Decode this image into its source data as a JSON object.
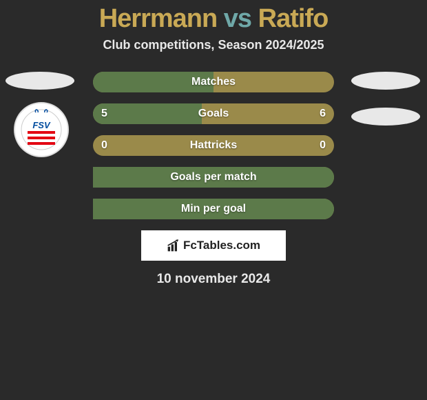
{
  "title": {
    "player1": "Herrmann",
    "vs": "vs",
    "player2": "Ratifo"
  },
  "subtitle": "Club competitions, Season 2024/2025",
  "date": "10 november 2024",
  "colors": {
    "bg": "#2a2a2a",
    "title_accent": "#c9a955",
    "title_vs": "#6fa8a8",
    "bar_base": "#9a8a4a",
    "bar_fill": "#5c7a4a",
    "text": "#e8e8e8"
  },
  "logo": {
    "bg": "#ffffff",
    "stripes": [
      "#e30613",
      "#ffffff",
      "#e30613",
      "#ffffff",
      "#e30613"
    ],
    "text": "FSV",
    "text_color": "#004b9e"
  },
  "bars": [
    {
      "label": "Matches",
      "left": null,
      "right": null,
      "left_pct": 50,
      "right_pct": 0
    },
    {
      "label": "Goals",
      "left": "5",
      "right": "6",
      "left_pct": 45,
      "right_pct": 0
    },
    {
      "label": "Hattricks",
      "left": "0",
      "right": "0",
      "left_pct": 0,
      "right_pct": 0
    },
    {
      "label": "Goals per match",
      "left": null,
      "right": null,
      "left_pct": 0,
      "right_pct": 100
    },
    {
      "label": "Min per goal",
      "left": null,
      "right": null,
      "left_pct": 0,
      "right_pct": 100
    }
  ],
  "fctables": "FcTables.com"
}
